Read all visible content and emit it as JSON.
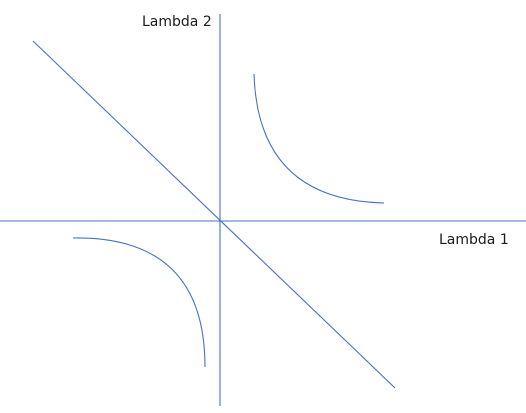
{
  "diagram": {
    "stroke_color": "#4472C4",
    "text_color": "#1a1a1a",
    "background": "#ffffff",
    "labels": {
      "x_axis": "Lambda 1",
      "y_axis": "Lambda 2"
    }
  }
}
